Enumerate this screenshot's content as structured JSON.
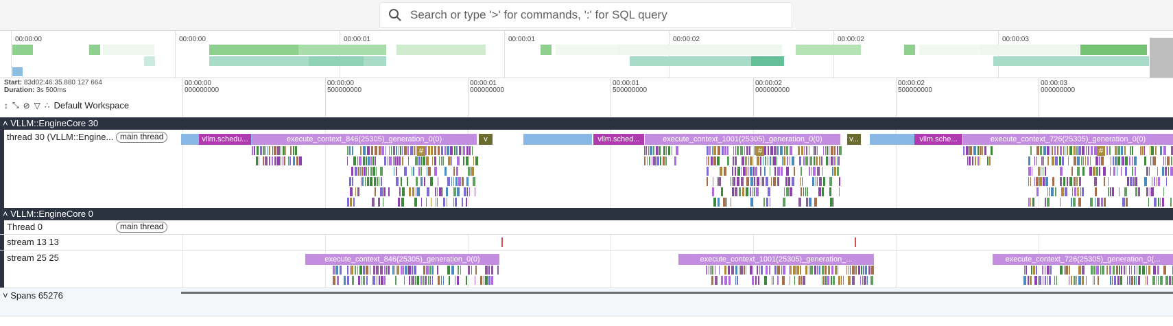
{
  "search": {
    "placeholder": "Search or type '>' for commands, ':' for SQL query"
  },
  "overview": {
    "labels": [
      "00:00:00",
      "00:00:00",
      "00:00:01",
      "00:00:01",
      "00:00:02",
      "00:00:02",
      "00:00:03"
    ]
  },
  "timeinfo": {
    "start_label": "Start:",
    "start_value": "83d02:46:35.880 127 664",
    "duration_label": "Duration:",
    "duration_value": "3s 500ms"
  },
  "workspace": {
    "name": "Default Workspace"
  },
  "ruler": {
    "ticks": [
      {
        "top": "00:00:00",
        "bottom": "000000000"
      },
      {
        "top": "00:00:00",
        "bottom": "500000000"
      },
      {
        "top": "00:00:01",
        "bottom": "000000000"
      },
      {
        "top": "00:00:01",
        "bottom": "500000000"
      },
      {
        "top": "00:00:02",
        "bottom": "000000000"
      },
      {
        "top": "00:00:02",
        "bottom": "500000000"
      },
      {
        "top": "00:00:03",
        "bottom": "000000000"
      }
    ]
  },
  "groups": [
    {
      "title": "VLLM::EngineCore 30"
    },
    {
      "title": "VLLM::EngineCore 0"
    },
    {
      "title": "Spans 65276"
    }
  ],
  "tracks": {
    "thread30": {
      "title": "thread 30 (VLLM::Engine...",
      "chip": "main thread"
    },
    "thread0": {
      "title": "Thread 0",
      "chip": "main thread"
    },
    "stream13": {
      "title": "stream 13 13"
    },
    "stream25": {
      "title": "stream 25 25"
    }
  },
  "slices": {
    "t30": [
      {
        "label": "vllm.schedu...",
        "color": "#b03ab0"
      },
      {
        "label": "execute_context_846(25305)_generation_0(0)",
        "color": "#c38ee0"
      },
      {
        "label": "v",
        "color": "#6b6b2e"
      },
      {
        "label": "vllm.sched...",
        "color": "#b03ab0"
      },
      {
        "label": "execute_context_1001(25305)_generation_0(0)",
        "color": "#c38ee0"
      },
      {
        "label": "v...",
        "color": "#6b6b2e"
      },
      {
        "label": "vllm.sche...",
        "color": "#b03ab0"
      },
      {
        "label": "execute_context_726(25305)_generation_0(0)",
        "color": "#c38ee0"
      }
    ],
    "s25": [
      {
        "label": "execute_context_846(25305)_generation_0(0)",
        "color": "#c38ee0"
      },
      {
        "label": "execute_context_1001(25305)_generation_...",
        "color": "#c38ee0"
      },
      {
        "label": "execute_context_726(25305)_generation_0(...",
        "color": "#c38ee0"
      }
    ],
    "hash_label": "#"
  },
  "colors": {
    "accent_dark": "#2b3240",
    "slice_purple": "#c38ee0",
    "slice_magenta": "#b03ab0",
    "sched_blue": "#8ab8e6"
  }
}
